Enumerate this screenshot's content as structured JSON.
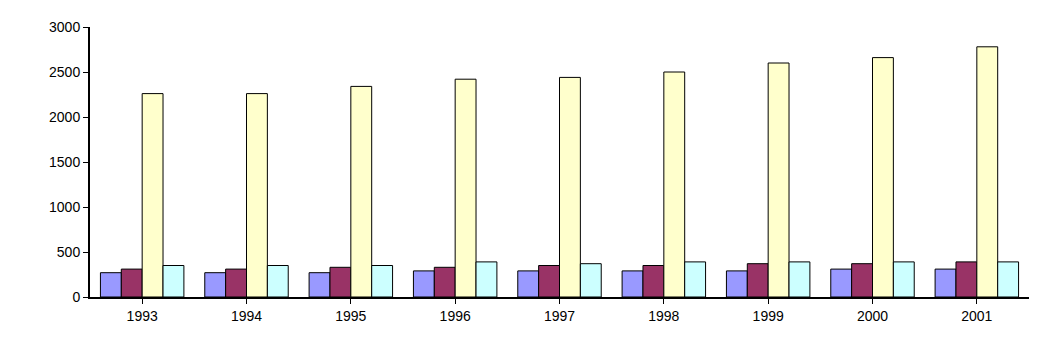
{
  "chart_data": {
    "type": "bar",
    "categories": [
      "1993",
      "1994",
      "1995",
      "1996",
      "1997",
      "1998",
      "1999",
      "2000",
      "2001"
    ],
    "series": [
      {
        "color": "#9999ff",
        "values": [
          270,
          270,
          270,
          290,
          290,
          290,
          290,
          310,
          310
        ]
      },
      {
        "color": "#993366",
        "values": [
          310,
          310,
          330,
          330,
          350,
          350,
          370,
          370,
          390
        ]
      },
      {
        "color": "#ffffcc",
        "values": [
          2260,
          2260,
          2340,
          2420,
          2440,
          2500,
          2600,
          2660,
          2780
        ]
      },
      {
        "color": "#ccffff",
        "values": [
          350,
          350,
          350,
          390,
          370,
          390,
          390,
          390,
          390
        ]
      }
    ],
    "ylim": [
      0,
      3000
    ],
    "yticks": [
      0,
      500,
      1000,
      1500,
      2000,
      2500,
      3000
    ],
    "grid": false
  }
}
